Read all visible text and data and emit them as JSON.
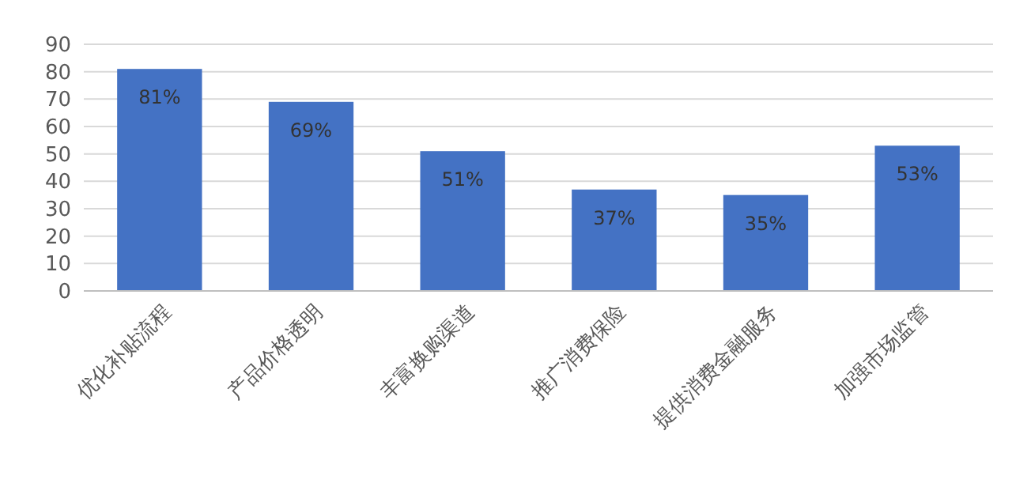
{
  "chart_data": {
    "type": "bar",
    "categories": [
      "优化补贴流程",
      "产品价格透明",
      "丰富换购渠道",
      "推广消费保险",
      "提供消费金融服务",
      "加强市场监管"
    ],
    "values": [
      81,
      69,
      51,
      37,
      35,
      53
    ],
    "color": "#4472c4",
    "value_labels": [
      "81%",
      "69%",
      "51%",
      "37%",
      "35%",
      "53%"
    ],
    "ylim": [
      0,
      90
    ],
    "yticks": [
      0,
      10,
      20,
      30,
      40,
      50,
      60,
      70,
      80,
      90
    ],
    "grid": "y"
  }
}
